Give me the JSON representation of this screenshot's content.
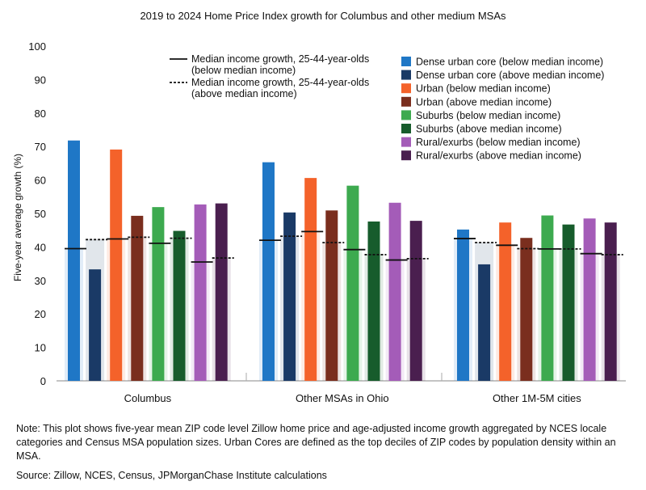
{
  "chart_data": {
    "type": "bar",
    "title": "2019 to 2024 Home Price Index growth for Columbus and other medium MSAs",
    "ylabel": "Five-year average growth (%)",
    "xlabel": "",
    "ylim": [
      0,
      100
    ],
    "yticks": [
      0,
      10,
      20,
      30,
      40,
      50,
      60,
      70,
      80,
      90,
      100
    ],
    "categories": [
      "Columbus",
      "Other MSAs in Ohio",
      "Other 1M-5M cities"
    ],
    "series": [
      {
        "name": "Dense urban core (below median income)",
        "color": "#1f77c6",
        "values": [
          71.8,
          65.3,
          45.2
        ],
        "income_growth": [
          39.5,
          42.0,
          42.5
        ],
        "line_style": "solid"
      },
      {
        "name": "Dense urban core (above median income)",
        "color": "#1a3a66",
        "values": [
          33.3,
          50.3,
          34.8
        ],
        "income_growth": [
          42.2,
          43.2,
          41.3
        ],
        "line_style": "dashed"
      },
      {
        "name": "Urban (below median income)",
        "color": "#f4622a",
        "values": [
          69.1,
          60.6,
          47.3
        ],
        "income_growth": [
          42.4,
          44.6,
          40.5
        ],
        "line_style": "solid"
      },
      {
        "name": "Urban (above median income)",
        "color": "#7a2e1e",
        "values": [
          49.3,
          50.9,
          42.7
        ],
        "income_growth": [
          42.9,
          41.3,
          39.5
        ],
        "line_style": "dashed"
      },
      {
        "name": "Suburbs (below median income)",
        "color": "#3daa4f",
        "values": [
          51.9,
          58.3,
          49.4
        ],
        "income_growth": [
          41.1,
          39.2,
          39.4
        ],
        "line_style": "solid"
      },
      {
        "name": "Suburbs (above median income)",
        "color": "#175c2c",
        "values": [
          44.8,
          47.6,
          46.7
        ],
        "income_growth": [
          42.6,
          37.7,
          39.4
        ],
        "line_style": "dashed"
      },
      {
        "name": "Rural/exurbs (below median income)",
        "color": "#a45cb8",
        "values": [
          52.7,
          53.2,
          48.5
        ],
        "income_growth": [
          35.5,
          36.1,
          38.0
        ],
        "line_style": "solid"
      },
      {
        "name": "Rural/exurbs (above median income)",
        "color": "#4a1f4f",
        "values": [
          53.0,
          47.8,
          47.3
        ],
        "income_growth": [
          36.7,
          36.5,
          37.7
        ],
        "line_style": "dashed"
      }
    ],
    "reference_legend": [
      {
        "label_line1": "Median income growth, 25-44-year-olds",
        "label_line2": "(below median income)",
        "style": "solid"
      },
      {
        "label_line1": "Median income growth, 25-44-year-olds",
        "label_line2": "(above median income)",
        "style": "dashed"
      }
    ],
    "grid": false,
    "legend_position": "top-right"
  },
  "note": "Note: This plot shows five-year mean ZIP code level Zillow home price and age-adjusted income growth aggregated by NCES locale categories and Census MSA population sizes. Urban Cores are defined as the top deciles of ZIP codes by population density within an MSA.",
  "source": "Source: Zillow, NCES, Census, JPMorganChase Institute calculations"
}
